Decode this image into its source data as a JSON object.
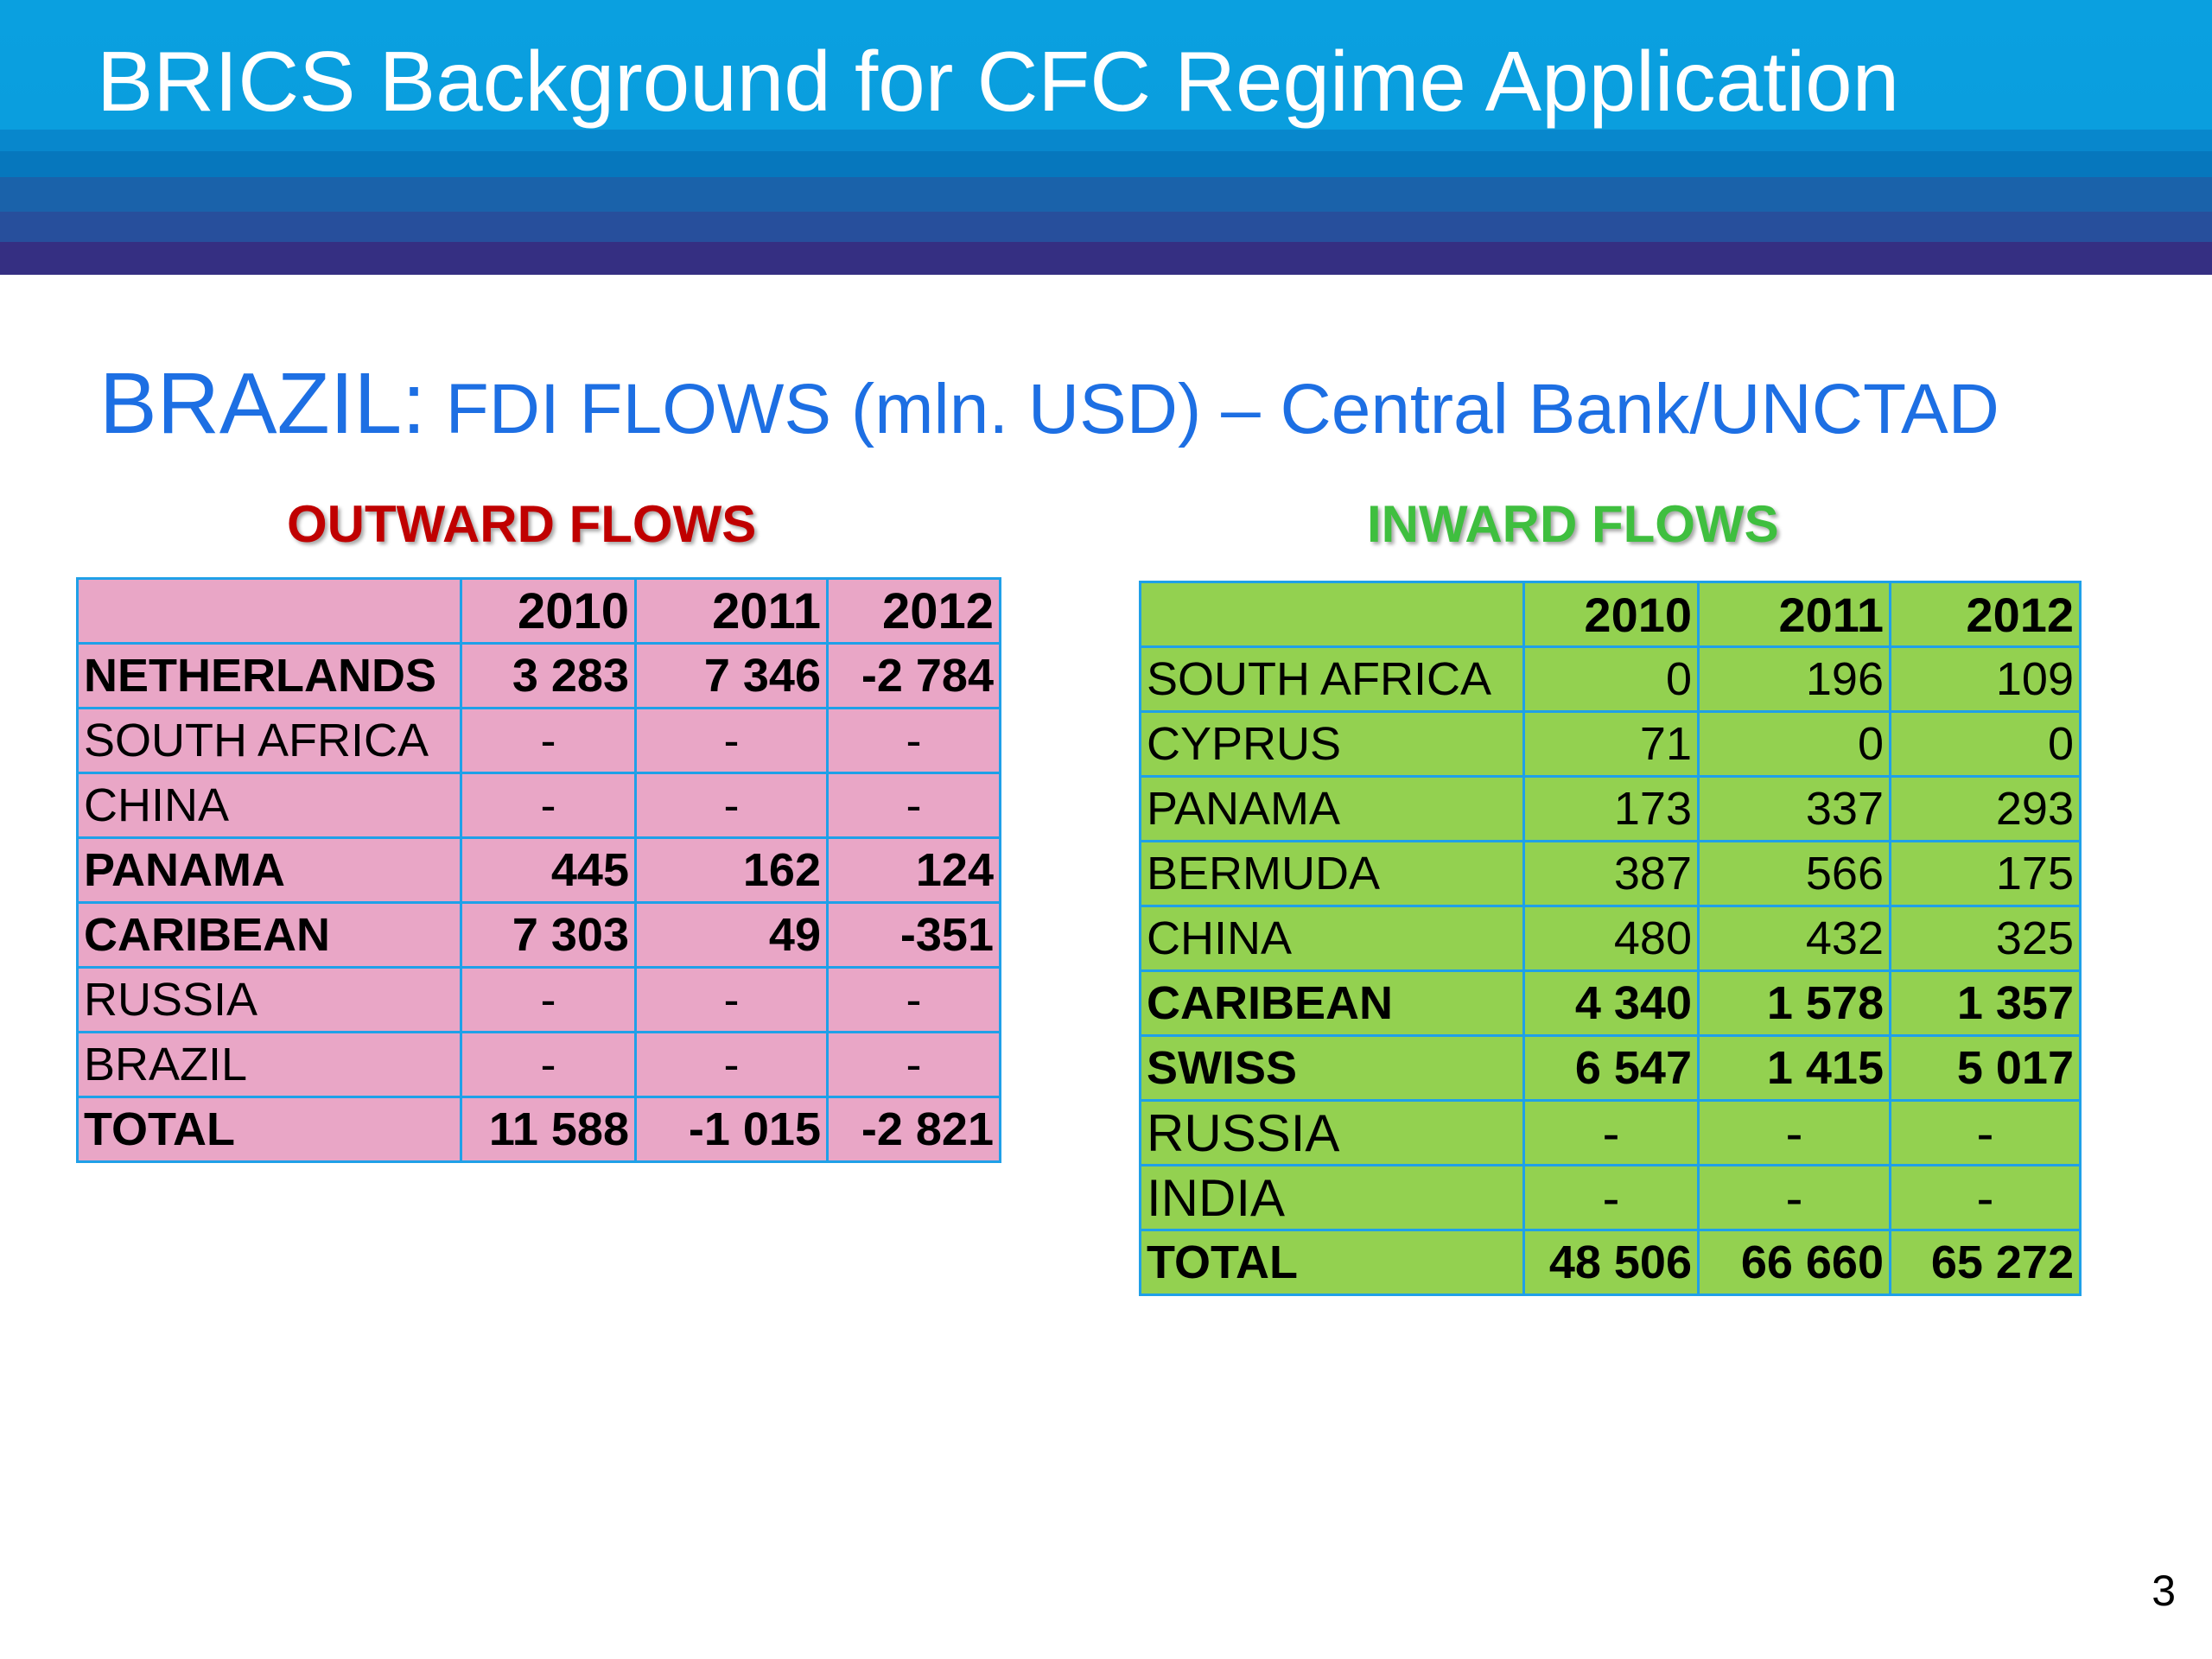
{
  "header": {
    "title": "BRICS Background for CFC Regime Application"
  },
  "subtitle": {
    "country": "BRAZIL:",
    "rest": " FDI FLOWS (mln. USD) – Central Bank/UNCTAD"
  },
  "outward": {
    "heading": "OUTWARD FLOWS",
    "columns": [
      "",
      "2010",
      "2011",
      "2012"
    ],
    "rows": [
      {
        "name": "NETHERLANDS",
        "v": [
          "3 283",
          "7 346",
          "-2 784"
        ],
        "bold": true
      },
      {
        "name": "SOUTH AFRICA",
        "v": [
          "-",
          "-",
          "-"
        ],
        "bold": false
      },
      {
        "name": "CHINA",
        "v": [
          "-",
          "-",
          "-"
        ],
        "bold": false
      },
      {
        "name": "PANAMA",
        "v": [
          "445",
          "162",
          "124"
        ],
        "bold": true
      },
      {
        "name": "CARIBEAN",
        "v": [
          "7 303",
          "49",
          "-351"
        ],
        "bold": true
      },
      {
        "name": "RUSSIA",
        "v": [
          "-",
          "-",
          "-"
        ],
        "bold": false
      },
      {
        "name": "BRAZIL",
        "v": [
          "-",
          "-",
          "-"
        ],
        "bold": false
      },
      {
        "name": "TOTAL",
        "v": [
          "11 588",
          "-1 015",
          "-2 821"
        ],
        "bold": true
      }
    ]
  },
  "inward": {
    "heading": "INWARD FLOWS",
    "columns": [
      "",
      "2010",
      "2011",
      "2012"
    ],
    "rows": [
      {
        "name": "SOUTH AFRICA",
        "v": [
          "0",
          "196",
          "109"
        ],
        "bold": false
      },
      {
        "name": "CYPRUS",
        "v": [
          "71",
          "0",
          "0"
        ],
        "bold": false
      },
      {
        "name": "PANAMA",
        "v": [
          "173",
          "337",
          "293"
        ],
        "bold": false
      },
      {
        "name": "BERMUDA",
        "v": [
          "387",
          "566",
          "175"
        ],
        "bold": false
      },
      {
        "name": "CHINA",
        "v": [
          "480",
          "432",
          "325"
        ],
        "bold": false
      },
      {
        "name": "CARIBEAN",
        "v": [
          "4 340",
          "1 578",
          "1 357"
        ],
        "bold": true
      },
      {
        "name": "SWISS",
        "v": [
          "6 547",
          "1 415",
          "5 017"
        ],
        "bold": true
      },
      {
        "name": "RUSSIA",
        "v": [
          "-",
          "-",
          "-"
        ],
        "bold": false
      },
      {
        "name": "INDIA",
        "v": [
          "-",
          "-",
          "-"
        ],
        "bold": false
      },
      {
        "name": "TOTAL",
        "v": [
          "48 506",
          "66 660",
          "65 272"
        ],
        "bold": true
      }
    ]
  },
  "footer": {
    "page_number": "3"
  },
  "colors": {
    "banner": "#0aa0e0",
    "subtitle": "#1d6fe3",
    "outward_heading": "#c00000",
    "inward_heading": "#3fbf3f",
    "outward_fill": "#e9a6c6",
    "inward_fill": "#93d150",
    "table_border": "#1fa0e8"
  }
}
